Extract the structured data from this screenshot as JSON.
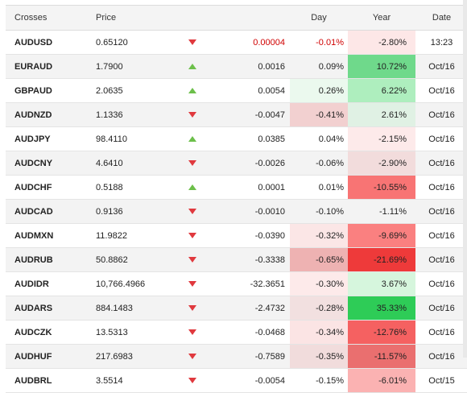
{
  "headers": {
    "crosses": "Crosses",
    "price": "Price",
    "day": "Day",
    "year": "Year",
    "date": "Date"
  },
  "rows": [
    {
      "symbol": "AUDUSD",
      "price": "0.65120",
      "direction": "down",
      "change": "0.00004",
      "change_red": true,
      "day": "-0.01%",
      "day_red": true,
      "day_bg": "#ffffff",
      "year": "-2.80%",
      "year_bg": "#fde7e7",
      "date": "13:23"
    },
    {
      "symbol": "EURAUD",
      "price": "1.7900",
      "direction": "up",
      "change": "0.0016",
      "change_red": false,
      "day": "0.09%",
      "day_red": false,
      "day_bg": "#f3f3f3",
      "year": "10.72%",
      "year_bg": "#6fd98b",
      "date": "Oct/16"
    },
    {
      "symbol": "GBPAUD",
      "price": "2.0635",
      "direction": "up",
      "change": "0.0054",
      "change_red": false,
      "day": "0.26%",
      "day_red": false,
      "day_bg": "#ebf9ee",
      "year": "6.22%",
      "year_bg": "#aeeebe",
      "date": "Oct/16"
    },
    {
      "symbol": "AUDNZD",
      "price": "1.1336",
      "direction": "down",
      "change": "-0.0047",
      "change_red": false,
      "day": "-0.41%",
      "day_red": false,
      "day_bg": "#f2d0d0",
      "year": "2.61%",
      "year_bg": "#e0f1e4",
      "date": "Oct/16"
    },
    {
      "symbol": "AUDJPY",
      "price": "98.4110",
      "direction": "up",
      "change": "0.0385",
      "change_red": false,
      "day": "0.04%",
      "day_red": false,
      "day_bg": "#ffffff",
      "year": "-2.15%",
      "year_bg": "#fdeaea",
      "date": "Oct/16"
    },
    {
      "symbol": "AUDCNY",
      "price": "4.6410",
      "direction": "down",
      "change": "-0.0026",
      "change_red": false,
      "day": "-0.06%",
      "day_red": false,
      "day_bg": "#f3f3f3",
      "year": "-2.90%",
      "year_bg": "#f2dcdc",
      "date": "Oct/16"
    },
    {
      "symbol": "AUDCHF",
      "price": "0.5188",
      "direction": "up",
      "change": "0.0001",
      "change_red": false,
      "day": "0.01%",
      "day_red": false,
      "day_bg": "#ffffff",
      "year": "-10.55%",
      "year_bg": "#f87474",
      "date": "Oct/16"
    },
    {
      "symbol": "AUDCAD",
      "price": "0.9136",
      "direction": "down",
      "change": "-0.0010",
      "change_red": false,
      "day": "-0.10%",
      "day_red": false,
      "day_bg": "#f3f3f3",
      "year": "-1.11%",
      "year_bg": "#f3f3f3",
      "date": "Oct/16"
    },
    {
      "symbol": "AUDMXN",
      "price": "11.9822",
      "direction": "down",
      "change": "-0.0390",
      "change_red": false,
      "day": "-0.32%",
      "day_red": false,
      "day_bg": "#fbe6e6",
      "year": "-9.69%",
      "year_bg": "#fa8080",
      "date": "Oct/16"
    },
    {
      "symbol": "AUDRUB",
      "price": "50.8862",
      "direction": "down",
      "change": "-0.3338",
      "change_red": false,
      "day": "-0.65%",
      "day_red": false,
      "day_bg": "#eeb2b2",
      "year": "-21.69%",
      "year_bg": "#ee3a3a",
      "date": "Oct/16"
    },
    {
      "symbol": "AUDIDR",
      "price": "10,766.4966",
      "direction": "down",
      "change": "-32.3651",
      "change_red": false,
      "day": "-0.30%",
      "day_red": false,
      "day_bg": "#fdeaea",
      "year": "3.67%",
      "year_bg": "#d6f6dd",
      "date": "Oct/16"
    },
    {
      "symbol": "AUDARS",
      "price": "884.1483",
      "direction": "down",
      "change": "-2.4732",
      "change_red": false,
      "day": "-0.28%",
      "day_red": false,
      "day_bg": "#f2e0e0",
      "year": "35.33%",
      "year_bg": "#2ecc57",
      "date": "Oct/16"
    },
    {
      "symbol": "AUDCZK",
      "price": "13.5313",
      "direction": "down",
      "change": "-0.0468",
      "change_red": false,
      "day": "-0.34%",
      "day_red": false,
      "day_bg": "#fbe4e4",
      "year": "-12.76%",
      "year_bg": "#f56161",
      "date": "Oct/16"
    },
    {
      "symbol": "AUDHUF",
      "price": "217.6983",
      "direction": "down",
      "change": "-0.7589",
      "change_red": false,
      "day": "-0.35%",
      "day_red": false,
      "day_bg": "#f1dcdc",
      "year": "-11.57%",
      "year_bg": "#ea6f6f",
      "date": "Oct/16"
    },
    {
      "symbol": "AUDBRL",
      "price": "3.5514",
      "direction": "down",
      "change": "-0.0054",
      "change_red": false,
      "day": "-0.15%",
      "day_red": false,
      "day_bg": "#ffffff",
      "year": "-6.01%",
      "year_bg": "#fbb2b2",
      "date": "Oct/15"
    }
  ]
}
